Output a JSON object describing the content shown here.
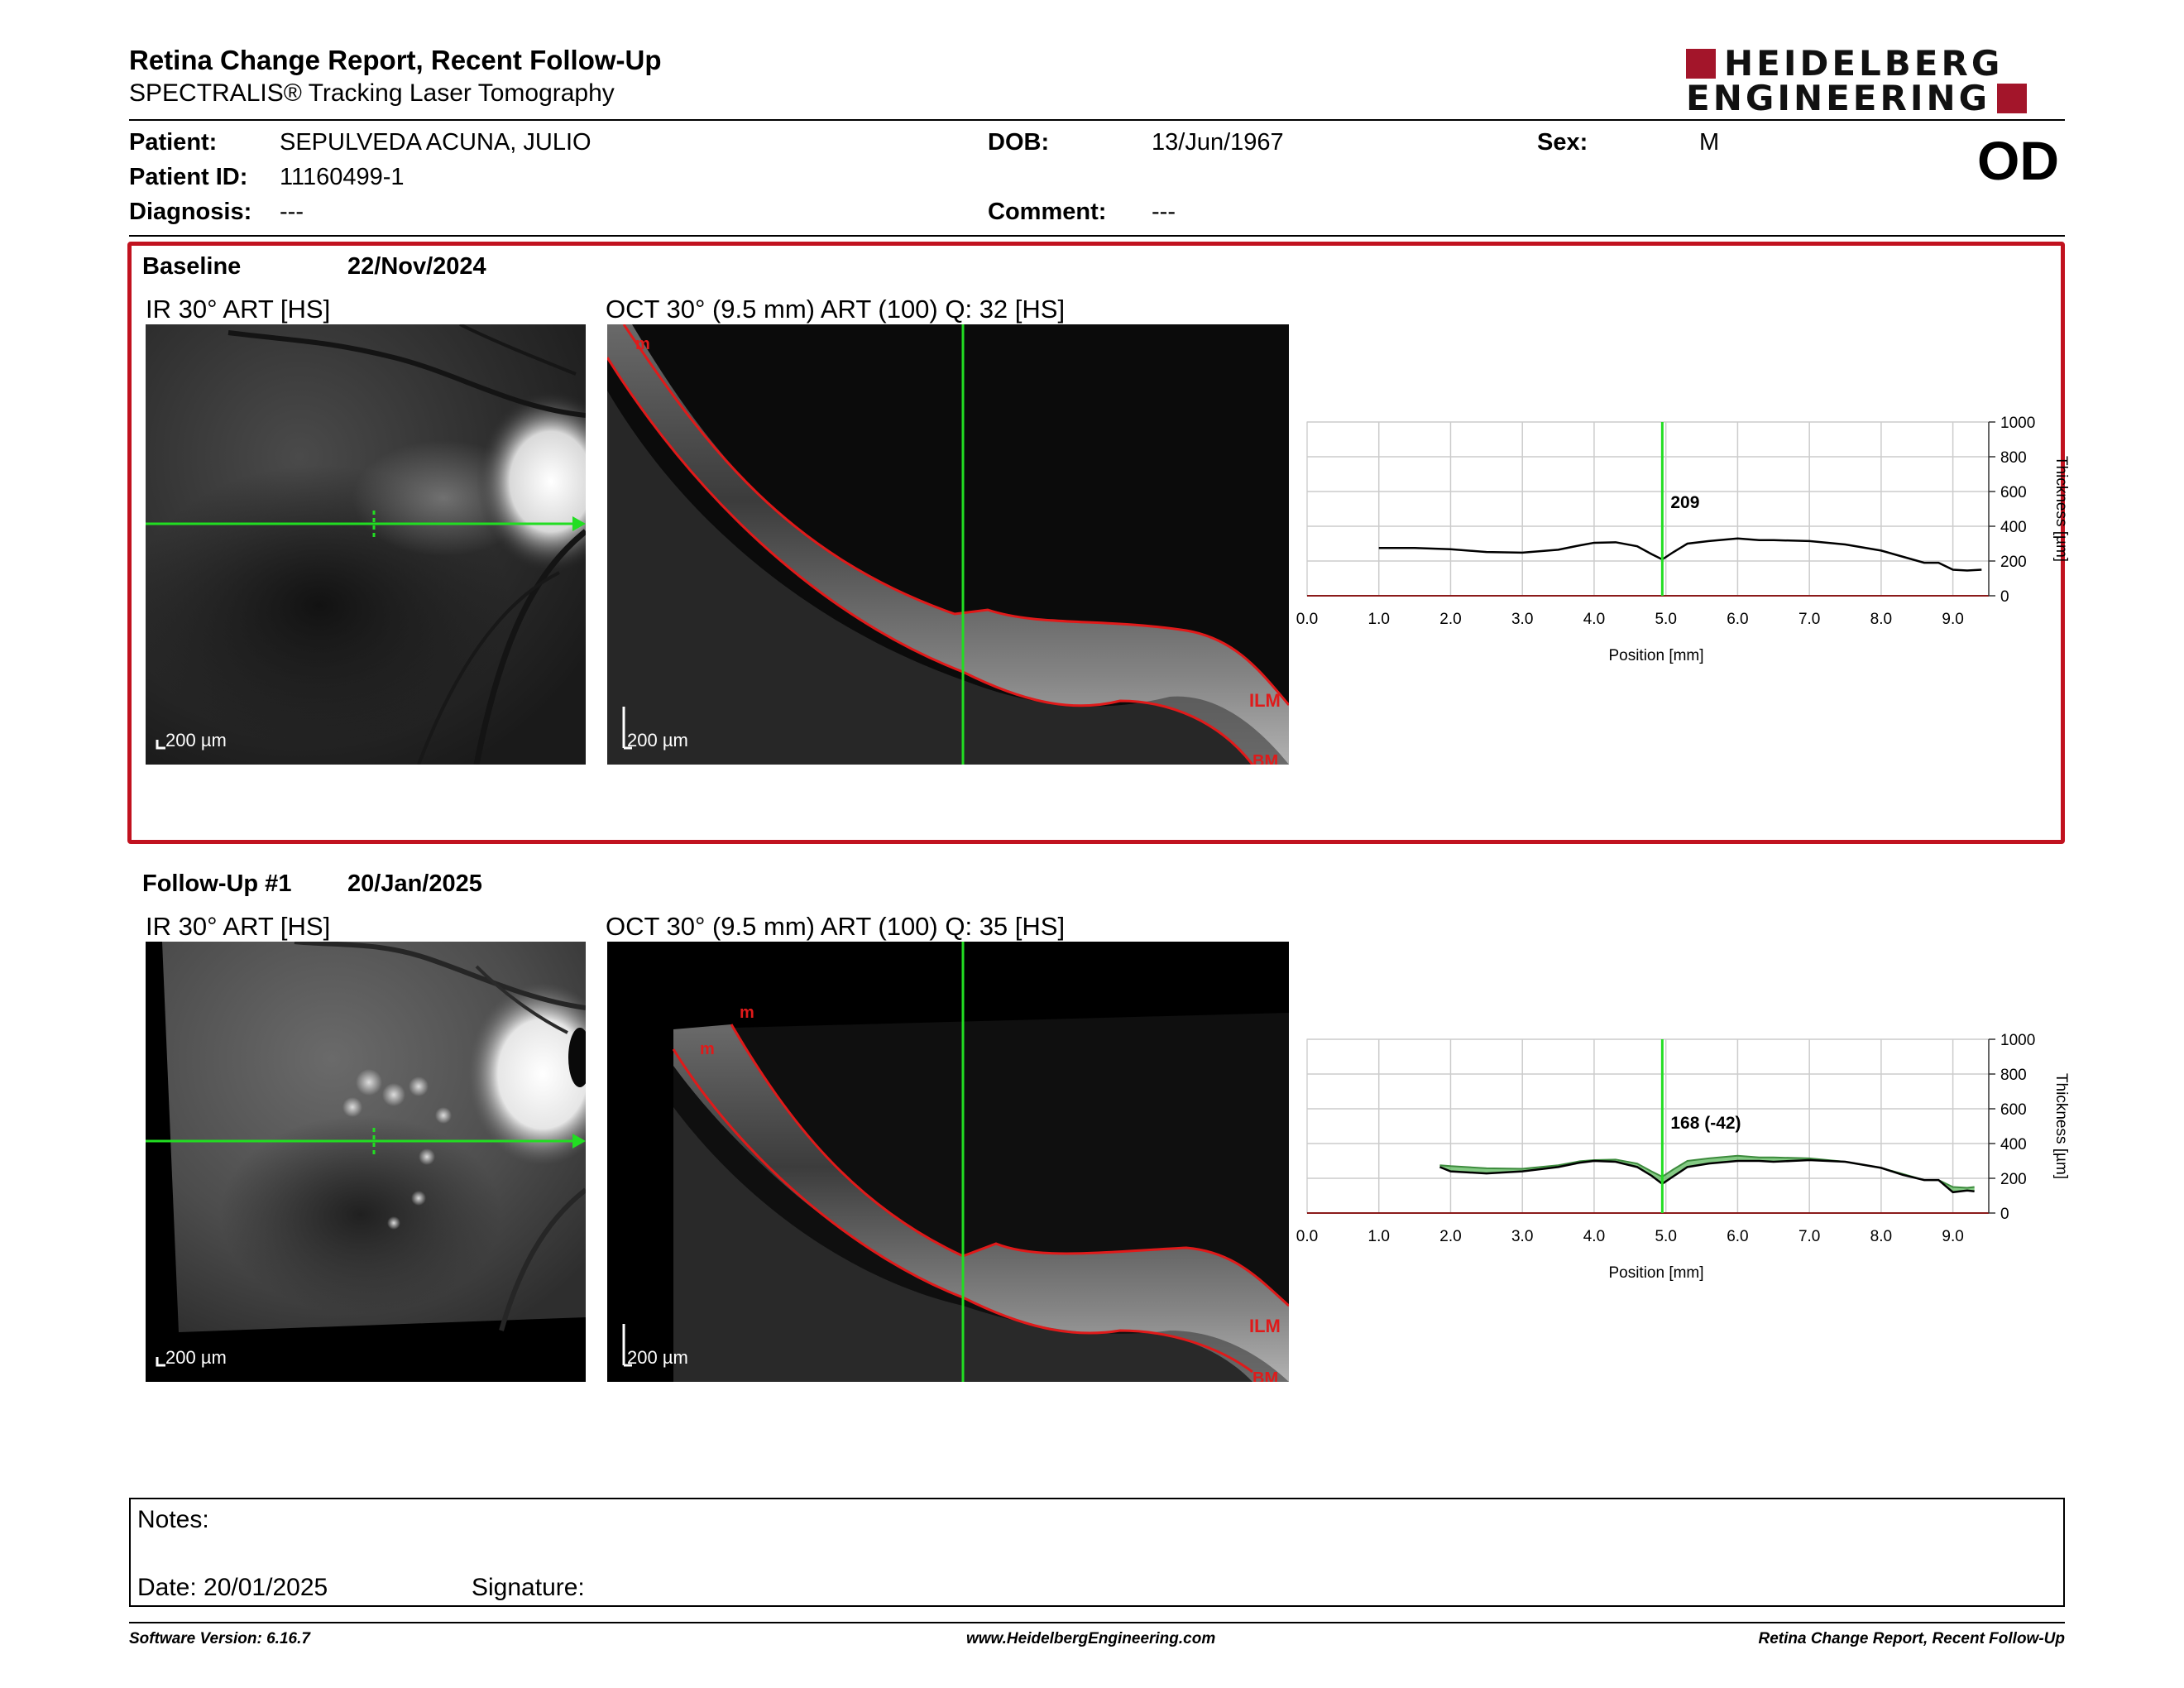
{
  "header": {
    "title": "Retina Change Report, Recent Follow-Up",
    "subtitle": "SPECTRALIS® Tracking Laser Tomography",
    "logo_line1": "HEIDELBERG",
    "logo_line2": "ENGINEERING",
    "eye": "OD"
  },
  "patient": {
    "patient_label": "Patient:",
    "patient_value": "SEPULVEDA ACUNA, JULIO",
    "id_label": "Patient ID:",
    "id_value": "11160499-1",
    "diagnosis_label": "Diagnosis:",
    "diagnosis_value": "---",
    "dob_label": "DOB:",
    "dob_value": "13/Jun/1967",
    "comment_label": "Comment:",
    "comment_value": "---",
    "sex_label": "Sex:",
    "sex_value": "M"
  },
  "baseline": {
    "section_label": "Baseline",
    "date": "22/Nov/2024",
    "ir_label": "IR 30° ART [HS]",
    "oct_label": "OCT 30° (9.5 mm) ART (100) Q: 32 [HS]",
    "scale_label": "200 µm",
    "layer_labels": [
      "m",
      "ILM",
      "BM"
    ],
    "marker_value": "209"
  },
  "followup": {
    "section_label": "Follow-Up #1",
    "date": "20/Jan/2025",
    "ir_label": "IR 30° ART [HS]",
    "oct_label": "OCT 30° (9.5 mm) ART (100) Q: 35 [HS]",
    "scale_label": "200 µm",
    "layer_labels": [
      "m",
      "m",
      "ILM",
      "BM"
    ],
    "marker_value": "168 (-42)"
  },
  "notes": {
    "notes_label": "Notes:",
    "date_label": "Date: 20/01/2025",
    "signature_label": "Signature:"
  },
  "footer": {
    "software": "Software Version: 6.16.7",
    "website": "www.HeidelbergEngineering.com",
    "report_name": "Retina Change Report, Recent Follow-Up"
  },
  "colors": {
    "brand_red": "#a3152a",
    "box_red": "#c1121f",
    "scan_green": "#22dd22",
    "layer_red": "#e01a1a",
    "change_fill": "#5bb85b"
  },
  "chart_data": [
    {
      "type": "line",
      "xlabel": "Position [mm]",
      "ylabel": "Thickness [µm]",
      "xlim": [
        0,
        9.5
      ],
      "ylim": [
        0,
        1000
      ],
      "x_ticks": [
        "0.0",
        "1.0",
        "2.0",
        "3.0",
        "4.0",
        "5.0",
        "6.0",
        "7.0",
        "8.0",
        "9.0"
      ],
      "y_ticks": [
        "0",
        "200",
        "400",
        "600",
        "800",
        "1000"
      ],
      "grid": true,
      "marker_x": 4.95,
      "marker_label": "209",
      "series": [
        {
          "x": [
            1.0,
            1.5,
            2.0,
            2.5,
            3.0,
            3.5,
            3.8,
            4.0,
            4.3,
            4.6,
            4.8,
            4.95,
            5.1,
            5.3,
            5.6,
            6.0,
            6.3,
            6.5,
            7.0,
            7.5,
            8.0,
            8.3,
            8.6,
            8.8,
            9.0,
            9.2,
            9.4
          ],
          "y": [
            275,
            275,
            268,
            252,
            248,
            265,
            290,
            305,
            308,
            285,
            240,
            209,
            250,
            300,
            315,
            330,
            320,
            320,
            315,
            295,
            260,
            225,
            190,
            190,
            150,
            145,
            150
          ]
        }
      ]
    },
    {
      "type": "line",
      "xlabel": "Position [mm]",
      "ylabel": "Thickness [µm]",
      "xlim": [
        0,
        9.5
      ],
      "ylim": [
        0,
        1000
      ],
      "x_ticks": [
        "0.0",
        "1.0",
        "2.0",
        "3.0",
        "4.0",
        "5.0",
        "6.0",
        "7.0",
        "8.0",
        "9.0"
      ],
      "y_ticks": [
        "0",
        "200",
        "400",
        "600",
        "800",
        "1000"
      ],
      "grid": true,
      "marker_x": 4.95,
      "marker_label": "168 (-42)",
      "series": [
        {
          "x": [
            1.85,
            2.0,
            2.5,
            3.0,
            3.5,
            3.8,
            4.0,
            4.3,
            4.6,
            4.8,
            4.95,
            5.1,
            5.3,
            5.6,
            6.0,
            6.3,
            6.5,
            7.0,
            7.5,
            8.0,
            8.3,
            8.6,
            8.8,
            9.0,
            9.2,
            9.3
          ],
          "y": [
            265,
            240,
            228,
            240,
            265,
            290,
            300,
            295,
            265,
            215,
            168,
            210,
            265,
            285,
            300,
            300,
            295,
            305,
            295,
            260,
            220,
            190,
            190,
            120,
            130,
            125
          ]
        },
        {
          "x": [
            1.85,
            2.0,
            2.5,
            3.0,
            3.5,
            3.8,
            4.0,
            4.3,
            4.6,
            4.8,
            4.95,
            5.1,
            5.3,
            5.6,
            6.0,
            6.3,
            6.5,
            7.0,
            7.5,
            8.0,
            8.3,
            8.6,
            8.8,
            9.0,
            9.2,
            9.3
          ],
          "y": [
            275,
            270,
            258,
            255,
            275,
            298,
            305,
            308,
            285,
            240,
            209,
            250,
            300,
            315,
            330,
            320,
            320,
            315,
            295,
            260,
            225,
            190,
            190,
            150,
            145,
            150
          ]
        }
      ]
    }
  ]
}
